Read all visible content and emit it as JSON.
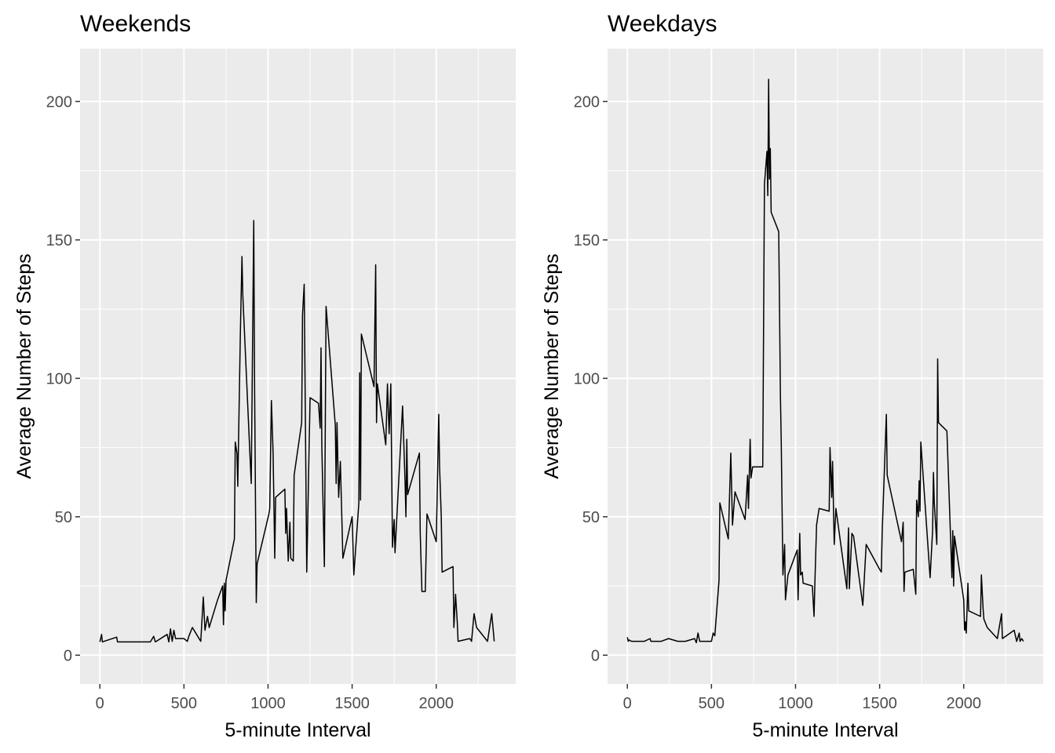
{
  "chart_data": [
    {
      "type": "line",
      "title": "Weekends",
      "x_label": "5-minute Interval",
      "y_label": "Average Number of Steps",
      "color": "#000000",
      "grid": true,
      "xlim": [
        -117.75,
        2472.75
      ],
      "ylim": [
        -10.4,
        219.1
      ],
      "xticks": [
        0,
        500,
        1000,
        1500,
        2000
      ],
      "yticks": [
        0,
        50,
        100,
        150,
        200
      ],
      "xminorticks": [
        250,
        750,
        1250,
        1750,
        2250
      ],
      "yminorticks": [
        25,
        75,
        125,
        175
      ],
      "x": [
        0,
        10,
        15,
        100,
        105,
        300,
        320,
        330,
        400,
        410,
        420,
        430,
        440,
        450,
        500,
        520,
        530,
        550,
        600,
        615,
        625,
        640,
        650,
        700,
        730,
        735,
        740,
        745,
        750,
        800,
        805,
        815,
        820,
        835,
        845,
        850,
        900,
        915,
        920,
        930,
        935,
        1005,
        1010,
        1020,
        1030,
        1040,
        1045,
        1100,
        1105,
        1110,
        1120,
        1130,
        1135,
        1150,
        1155,
        1200,
        1205,
        1215,
        1230,
        1250,
        1300,
        1310,
        1315,
        1320,
        1335,
        1345,
        1400,
        1405,
        1410,
        1420,
        1430,
        1445,
        1500,
        1510,
        1540,
        1545,
        1550,
        1555,
        1630,
        1640,
        1645,
        1650,
        1700,
        1710,
        1720,
        1730,
        1740,
        1750,
        1755,
        1800,
        1815,
        1820,
        1825,
        1830,
        1900,
        1905,
        1915,
        1935,
        1945,
        2000,
        2015,
        2020,
        2030,
        2035,
        2100,
        2105,
        2115,
        2125,
        2130,
        2200,
        2210,
        2225,
        2240,
        2305,
        2330,
        2345
      ],
      "values": [
        4.8,
        7.5,
        4.8,
        6.5,
        4.8,
        4.8,
        6.8,
        4.8,
        7.5,
        4.8,
        9.5,
        5,
        9,
        6,
        6,
        5,
        7,
        10,
        5,
        21,
        9,
        14,
        10,
        20,
        25,
        11,
        26,
        16,
        27,
        42,
        77,
        73,
        61,
        115,
        144,
        130,
        62,
        157,
        97,
        19,
        33,
        51,
        53,
        92,
        73,
        35,
        57,
        60,
        44,
        53,
        34,
        48,
        35,
        34,
        65,
        84,
        123,
        134,
        30,
        93,
        91,
        82,
        111,
        75,
        32,
        126,
        83,
        62,
        84,
        57,
        70,
        35,
        50,
        29,
        55,
        102,
        56,
        116,
        97,
        141,
        84,
        98,
        76,
        98,
        80,
        98,
        39,
        49,
        37,
        90,
        62,
        50,
        78,
        58,
        73,
        44,
        23,
        23,
        51,
        41,
        87,
        68,
        50,
        30,
        32,
        10,
        22,
        12,
        5,
        6,
        5,
        15,
        10,
        5,
        15,
        5
      ]
    },
    {
      "type": "line",
      "title": "Weekdays",
      "x_label": "5-minute Interval",
      "y_label": "Average Number of Steps",
      "color": "#000000",
      "grid": true,
      "xlim": [
        -117.75,
        2472.75
      ],
      "ylim": [
        -10.4,
        219.1
      ],
      "xticks": [
        0,
        500,
        1000,
        1500,
        2000
      ],
      "yticks": [
        0,
        50,
        100,
        150,
        200
      ],
      "xminorticks": [
        250,
        750,
        1250,
        1750,
        2250
      ],
      "yminorticks": [
        25,
        75,
        125,
        175
      ],
      "x": [
        0,
        5,
        10,
        25,
        100,
        135,
        140,
        200,
        245,
        300,
        345,
        400,
        410,
        420,
        430,
        500,
        510,
        520,
        545,
        550,
        600,
        615,
        625,
        640,
        700,
        715,
        720,
        730,
        735,
        745,
        805,
        815,
        830,
        835,
        840,
        845,
        850,
        855,
        900,
        910,
        915,
        925,
        935,
        940,
        955,
        1010,
        1015,
        1025,
        1030,
        1040,
        1045,
        1100,
        1110,
        1115,
        1125,
        1140,
        1200,
        1205,
        1215,
        1220,
        1230,
        1240,
        1305,
        1315,
        1320,
        1335,
        1345,
        1400,
        1420,
        1500,
        1510,
        1515,
        1540,
        1545,
        1630,
        1640,
        1645,
        1650,
        1700,
        1715,
        1720,
        1730,
        1735,
        1740,
        1745,
        1800,
        1815,
        1820,
        1825,
        1840,
        1845,
        1850,
        1900,
        1930,
        1935,
        1940,
        1945,
        2000,
        2005,
        2010,
        2015,
        2025,
        2030,
        2100,
        2105,
        2115,
        2120,
        2140,
        2200,
        2225,
        2230,
        2300,
        2315,
        2320,
        2330,
        2335,
        2345,
        2355
      ],
      "values": [
        6.5,
        5,
        5.5,
        5,
        5,
        6,
        5,
        5,
        6,
        5,
        5,
        6,
        4.5,
        8,
        5,
        5,
        8,
        7,
        27,
        55,
        42,
        73,
        47,
        59,
        49,
        65,
        53,
        78,
        64,
        68,
        68,
        170,
        182,
        166,
        208,
        172,
        183,
        160,
        153,
        94,
        77,
        29,
        40,
        20,
        29,
        38,
        20,
        44,
        29,
        30,
        26,
        25,
        14,
        26,
        47,
        53,
        52,
        75,
        57,
        70,
        40,
        53,
        24,
        46,
        24,
        44,
        43,
        18,
        40,
        31,
        30,
        44,
        87,
        65,
        41,
        48,
        23,
        30,
        31,
        22,
        56,
        50,
        63,
        52,
        77,
        28,
        45,
        66,
        55,
        40,
        107,
        84,
        81,
        28,
        45,
        25,
        43,
        20,
        9,
        12,
        8,
        26,
        16,
        14,
        29,
        17,
        13,
        10,
        6,
        15,
        6,
        9,
        5,
        6,
        8,
        5,
        6,
        5
      ]
    }
  ]
}
